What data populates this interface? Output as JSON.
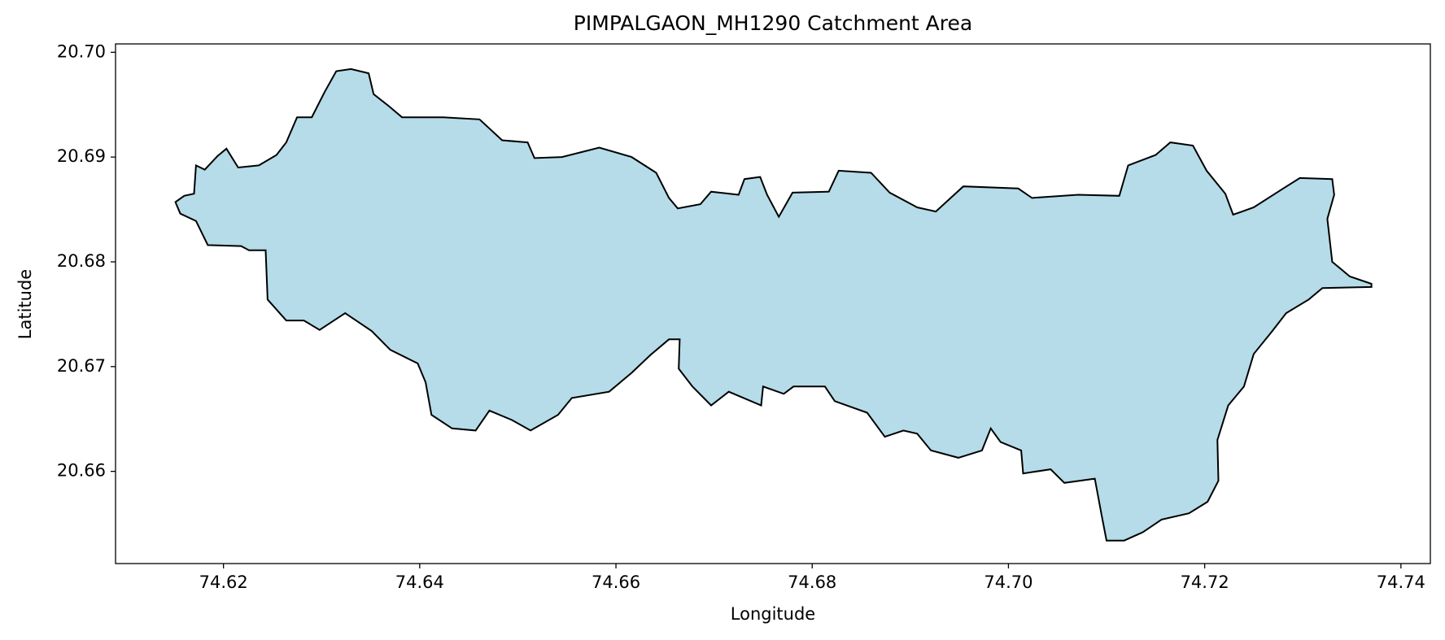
{
  "chart_data": {
    "type": "polygon",
    "title": "PIMPALGAON_MH1290 Catchment Area",
    "xlabel": "Longitude",
    "ylabel": "Latitude",
    "color": "#add8e6",
    "edgecolor": "#000000",
    "grid": false,
    "xlim": [
      74.609,
      74.743
    ],
    "ylim": [
      20.6512,
      20.7008
    ],
    "xticks": [
      74.62,
      74.64,
      74.66,
      74.68,
      {
        "value": 74.7,
        "label": "74.70"
      },
      74.72,
      74.74
    ],
    "yticks": [
      20.66,
      20.67,
      20.68,
      20.69,
      {
        "value": 20.7,
        "label": "20.70"
      }
    ],
    "x": [
      74.6151,
      74.616,
      74.617,
      74.6172,
      74.6181,
      74.6194,
      74.6203,
      74.6215,
      74.6236,
      74.6254,
      74.6264,
      74.6275,
      74.629,
      74.6303,
      74.6315,
      74.633,
      74.6348,
      74.6353,
      74.6368,
      74.6382,
      74.6424,
      74.6461,
      74.6484,
      74.651,
      74.6517,
      74.6545,
      74.6583,
      74.6616,
      74.6641,
      74.6654,
      74.6663,
      74.6686,
      74.6697,
      74.6725,
      74.6731,
      74.6747,
      74.6754,
      74.6766,
      74.678,
      74.6817,
      74.6827,
      74.686,
      74.6879,
      74.6907,
      74.6926,
      74.6954,
      74.701,
      74.7024,
      74.7071,
      74.7113,
      74.7122,
      74.715,
      74.7165,
      74.7188,
      74.7202,
      74.7221,
      74.7229,
      74.725,
      74.728,
      74.7297,
      74.733,
      74.7332,
      74.7325,
      74.733,
      74.7348,
      74.737,
      74.737,
      74.732,
      74.7306,
      74.7283,
      74.7269,
      74.725,
      74.724,
      74.7224,
      74.7213,
      74.7214,
      74.7203,
      74.7184,
      74.7156,
      74.7137,
      74.7118,
      74.71,
      74.7095,
      74.7088,
      74.7057,
      74.7043,
      74.7015,
      74.7013,
      74.6992,
      74.6982,
      74.6973,
      74.6949,
      74.6921,
      74.6907,
      74.6893,
      74.6874,
      74.6856,
      74.6823,
      74.6813,
      74.6781,
      74.6771,
      74.675,
      74.6748,
      74.6715,
      74.6697,
      74.6678,
      74.6664,
      74.6665,
      74.6654,
      74.6635,
      74.6616,
      74.6593,
      74.6555,
      74.6541,
      74.6513,
      74.6494,
      74.6471,
      74.6457,
      74.6433,
      74.6412,
      74.6406,
      74.6398,
      74.637,
      74.6351,
      74.6324,
      74.6298,
      74.6282,
      74.6264,
      74.6245,
      74.6243,
      74.6226,
      74.6218,
      74.6184,
      74.6172,
      74.6156
    ],
    "y": [
      20.6857,
      20.6863,
      20.6865,
      20.6892,
      20.6888,
      20.6901,
      20.6908,
      20.689,
      20.6892,
      20.6902,
      20.6914,
      20.6938,
      20.6938,
      20.6962,
      20.6982,
      20.6984,
      20.698,
      20.696,
      20.6949,
      20.6938,
      20.6938,
      20.6936,
      20.6916,
      20.6914,
      20.6899,
      20.69,
      20.6909,
      20.69,
      20.6885,
      20.6861,
      20.6851,
      20.6855,
      20.6867,
      20.6864,
      20.6879,
      20.6881,
      20.6864,
      20.6843,
      20.6866,
      20.6867,
      20.6887,
      20.6885,
      20.6866,
      20.6852,
      20.6848,
      20.6872,
      20.687,
      20.6861,
      20.6864,
      20.6863,
      20.6892,
      20.6902,
      20.6914,
      20.6911,
      20.6887,
      20.6865,
      20.6845,
      20.6852,
      20.687,
      20.688,
      20.6879,
      20.6864,
      20.6841,
      20.68,
      20.6786,
      20.6779,
      20.6776,
      20.6775,
      20.6764,
      20.6751,
      20.6734,
      20.6712,
      20.6681,
      20.6663,
      20.663,
      20.6591,
      20.6571,
      20.656,
      20.6554,
      20.6542,
      20.6534,
      20.6534,
      20.6558,
      20.6593,
      20.6589,
      20.6602,
      20.6598,
      20.662,
      20.6628,
      20.6641,
      20.662,
      20.6613,
      20.662,
      20.6636,
      20.6639,
      20.6633,
      20.6656,
      20.6667,
      20.6681,
      20.6681,
      20.6674,
      20.6681,
      20.6663,
      20.6676,
      20.6663,
      20.6681,
      20.6698,
      20.6726,
      20.6726,
      20.6711,
      20.6694,
      20.6676,
      20.667,
      20.6654,
      20.6639,
      20.6649,
      20.6658,
      20.6639,
      20.6641,
      20.6654,
      20.6685,
      20.6703,
      20.6716,
      20.6734,
      20.6751,
      20.6735,
      20.6744,
      20.6744,
      20.6764,
      20.6811,
      20.6811,
      20.6815,
      20.6816,
      20.6839,
      20.6846
    ]
  }
}
